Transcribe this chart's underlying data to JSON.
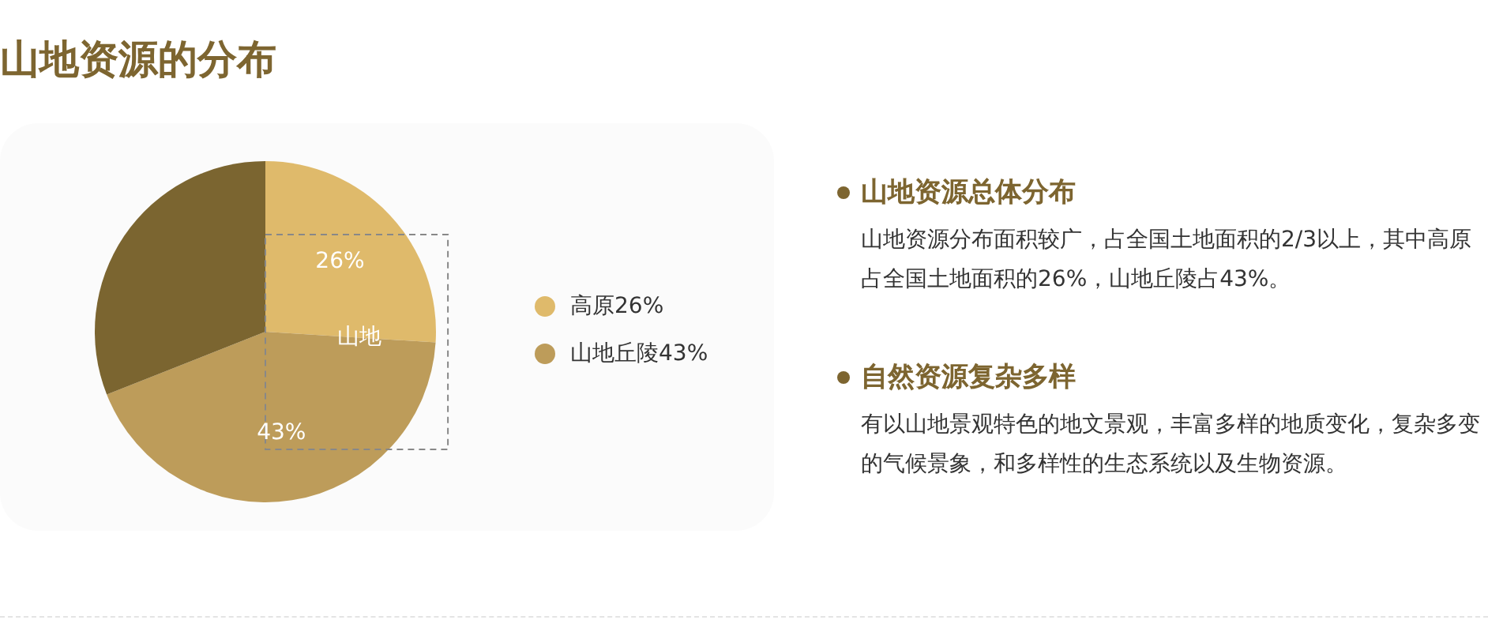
{
  "chart_data": [
    {
      "type": "pie",
      "title": "山地资源的分布",
      "categories": [
        "高原26%",
        "山地丘陵43%",
        null
      ],
      "values": [
        26,
        43,
        31
      ],
      "colors": [
        "#dfba6b",
        "#bd9c5a",
        "#7b6530"
      ],
      "value_labels": [
        "26%",
        "43%",
        null
      ],
      "legend": "right",
      "annotations": [
        "山地"
      ]
    },
    {
      "type": "other",
      "annotations": [
        "山地资源总体分布",
        "山地资源分布面积较广，占全国土地面积的2/3以上，其中高原占全国土地面积的26%，山地丘陵占43%。",
        "自然资源复杂多样",
        "有以山地景观特色的地文景观，丰富多样的地质变化，复杂多变的气候景象，和多样性的生态系统以及生物资源。"
      ]
    }
  ]
}
